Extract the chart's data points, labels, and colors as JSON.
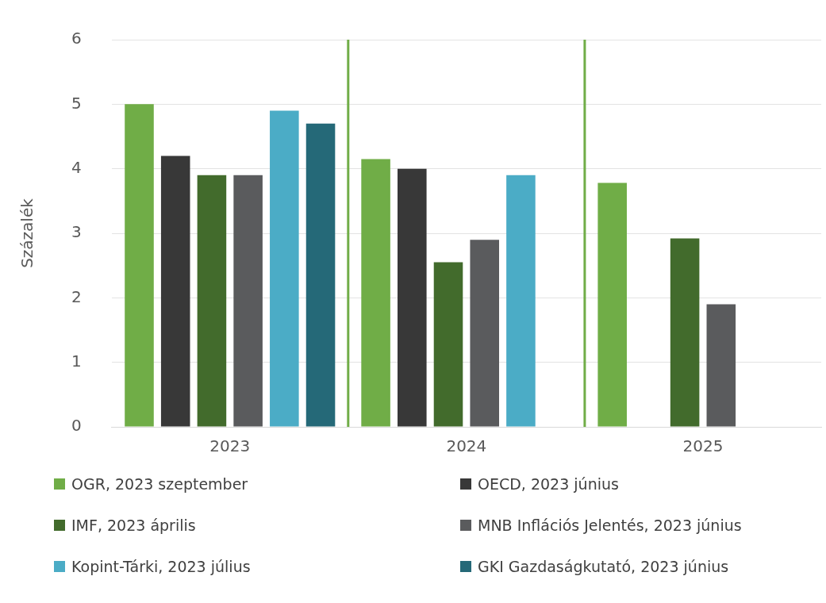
{
  "chart_data": {
    "type": "bar",
    "ylabel": "Százalék",
    "categories": [
      "2023",
      "2024",
      "2025"
    ],
    "series": [
      {
        "name": "OGR, 2023 szeptember",
        "color": "#70ad47",
        "values": [
          5.0,
          4.15,
          3.78
        ]
      },
      {
        "name": "OECD, 2023 június",
        "color": "#383838",
        "values": [
          4.2,
          4.0,
          null
        ]
      },
      {
        "name": "IMF, 2023 április",
        "color": "#426b2c",
        "values": [
          3.9,
          2.55,
          2.92
        ]
      },
      {
        "name": "MNB Inflációs Jelentés, 2023 június",
        "color": "#5a5b5d",
        "values": [
          3.9,
          2.9,
          1.9
        ]
      },
      {
        "name": "Kopint-Tárki, 2023 július",
        "color": "#4bacc6",
        "values": [
          4.9,
          3.9,
          null
        ]
      },
      {
        "name": "GKI Gazdaságkutató, 2023 június",
        "color": "#256978",
        "values": [
          4.7,
          null,
          null
        ]
      }
    ],
    "ylim": [
      0,
      6
    ],
    "yticks": [
      0,
      1,
      2,
      3,
      4,
      5,
      6
    ],
    "grid": "y",
    "legend": "bottom"
  }
}
